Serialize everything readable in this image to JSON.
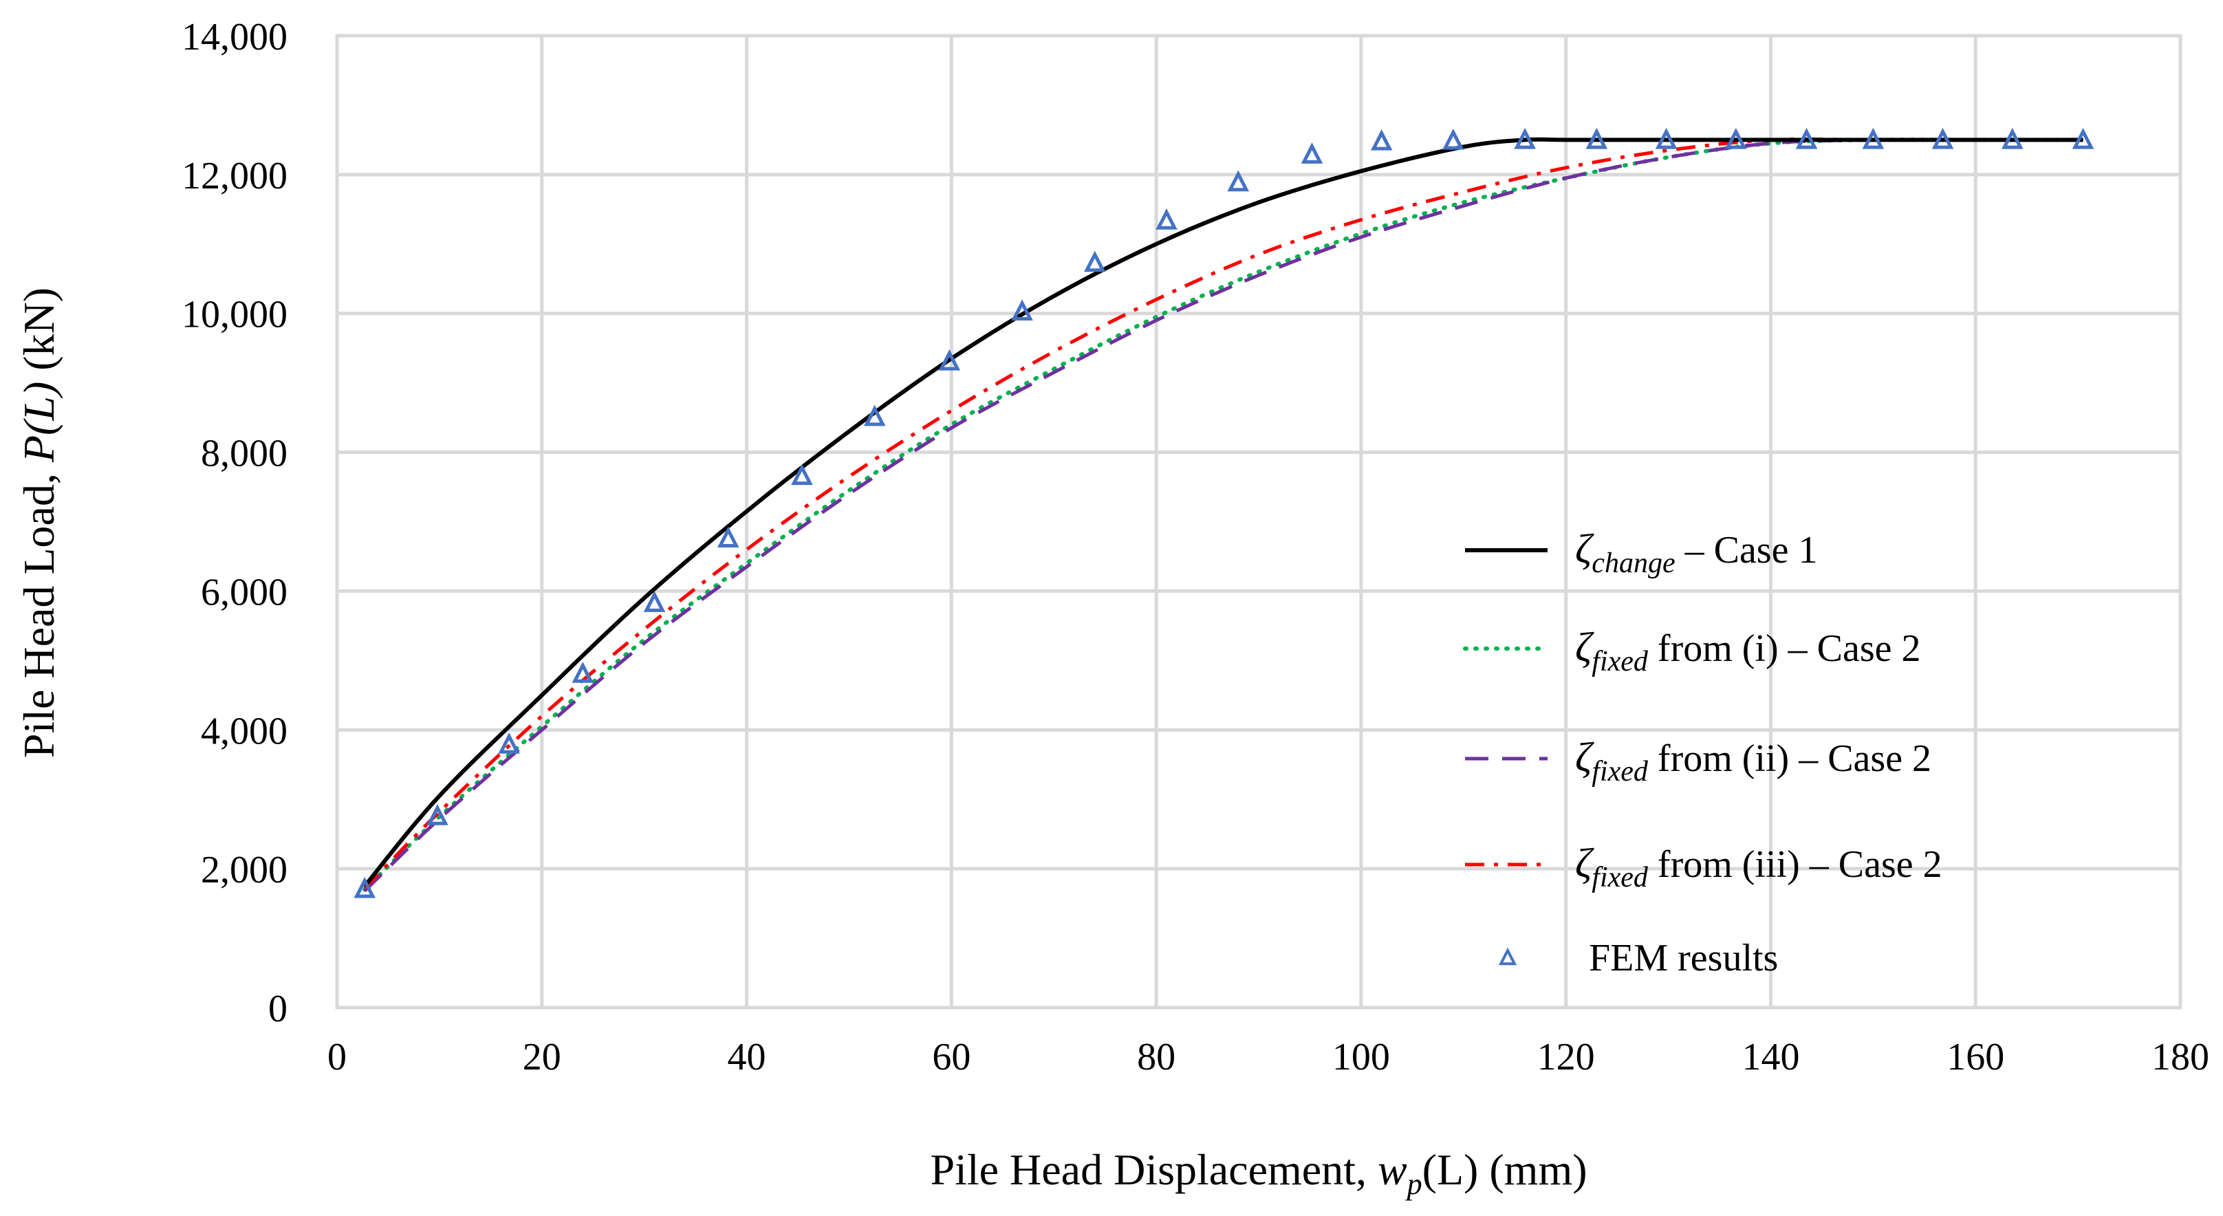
{
  "chart_data": {
    "type": "line",
    "xlabel_prefix": "Pile Head Displacement, ",
    "xlabel_var": "w",
    "xlabel_sub": "p",
    "xlabel_suffix": "(L) (mm)",
    "ylabel_prefix": "Pile Head Load, ",
    "ylabel_var": "P(L)",
    "ylabel_suffix": " (kN)",
    "xlim": [
      0,
      180
    ],
    "ylim": [
      0,
      14000
    ],
    "x_ticks": [
      0,
      20,
      40,
      60,
      80,
      100,
      120,
      140,
      160,
      180
    ],
    "x_tick_labels": [
      "0",
      "20",
      "40",
      "60",
      "80",
      "100",
      "120",
      "140",
      "160",
      "180"
    ],
    "y_ticks": [
      0,
      2000,
      4000,
      6000,
      8000,
      10000,
      12000,
      14000
    ],
    "y_tick_labels": [
      "0",
      "2,000",
      "4,000",
      "6,000",
      "8,000",
      "10,000",
      "12,000",
      "14,000"
    ],
    "grid": true,
    "legend_position": "right",
    "series": [
      {
        "name": "ζchange – Case 1",
        "symbol": "ζ",
        "subscript": "change",
        "label_rest": " – Case 1",
        "style": "solid",
        "color": "#000000",
        "x": [
          2.7,
          10,
          20,
          30,
          40,
          50,
          60,
          70,
          80,
          90,
          100,
          110,
          116,
          120,
          130,
          140,
          150,
          160,
          170.5
        ],
        "y": [
          1750,
          3050,
          4500,
          5900,
          7150,
          8300,
          9350,
          10250,
          11000,
          11600,
          12050,
          12400,
          12500,
          12500,
          12500,
          12500,
          12500,
          12500,
          12500
        ]
      },
      {
        "name": "ζfixed from (i) – Case 2",
        "symbol": "ζ",
        "subscript": "fixed",
        "label_rest": "  from (i)   – Case 2",
        "style": "dotted",
        "color": "#00b050",
        "x": [
          2.7,
          10,
          20,
          30,
          40,
          50,
          60,
          70,
          80,
          90,
          100,
          110,
          120,
          130,
          140,
          150,
          160,
          170.5
        ],
        "y": [
          1700,
          2750,
          4050,
          5300,
          6400,
          7450,
          8400,
          9200,
          9950,
          10600,
          11150,
          11600,
          11950,
          12250,
          12450,
          12500,
          12500,
          12500
        ]
      },
      {
        "name": "ζfixed from (ii) – Case 2",
        "symbol": "ζ",
        "subscript": "fixed",
        "label_rest": "  from (ii) – Case 2",
        "style": "dashed",
        "color": "#7030a0",
        "x": [
          2.7,
          10,
          20,
          30,
          40,
          50,
          60,
          70,
          80,
          90,
          100,
          110,
          120,
          130,
          140,
          150,
          160,
          170.5
        ],
        "y": [
          1680,
          2720,
          4000,
          5250,
          6350,
          7400,
          8350,
          9150,
          9900,
          10550,
          11100,
          11550,
          11950,
          12250,
          12450,
          12500,
          12500,
          12500
        ]
      },
      {
        "name": "ζfixed from (iii) – Case 2",
        "symbol": "ζ",
        "subscript": "fixed",
        "label_rest": " from (iii) – Case 2",
        "style": "dashdot",
        "color": "#ff0000",
        "x": [
          2.7,
          10,
          20,
          30,
          40,
          50,
          60,
          70,
          80,
          90,
          100,
          110,
          120,
          130,
          140,
          150,
          160,
          170.5
        ],
        "y": [
          1720,
          2820,
          4200,
          5450,
          6600,
          7650,
          8600,
          9450,
          10200,
          10850,
          11350,
          11750,
          12100,
          12350,
          12500,
          12500,
          12500,
          12500
        ]
      },
      {
        "name": "FEM results",
        "label_rest": "FEM results",
        "style": "marker-triangle",
        "color": "#4472c4",
        "x": [
          2.7,
          9.8,
          16.8,
          24,
          31,
          38.2,
          45.4,
          52.5,
          59.8,
          66.9,
          74,
          81,
          88,
          95.2,
          102,
          109,
          116,
          123,
          129.8,
          136.6,
          143.5,
          150,
          156.8,
          163.6,
          170.5
        ],
        "y": [
          1700,
          2750,
          3780,
          4800,
          5820,
          6750,
          7650,
          8500,
          9300,
          10020,
          10720,
          11330,
          11880,
          12280,
          12470,
          12480,
          12490,
          12490,
          12490,
          12490,
          12490,
          12490,
          12490,
          12490,
          12490
        ]
      }
    ]
  }
}
